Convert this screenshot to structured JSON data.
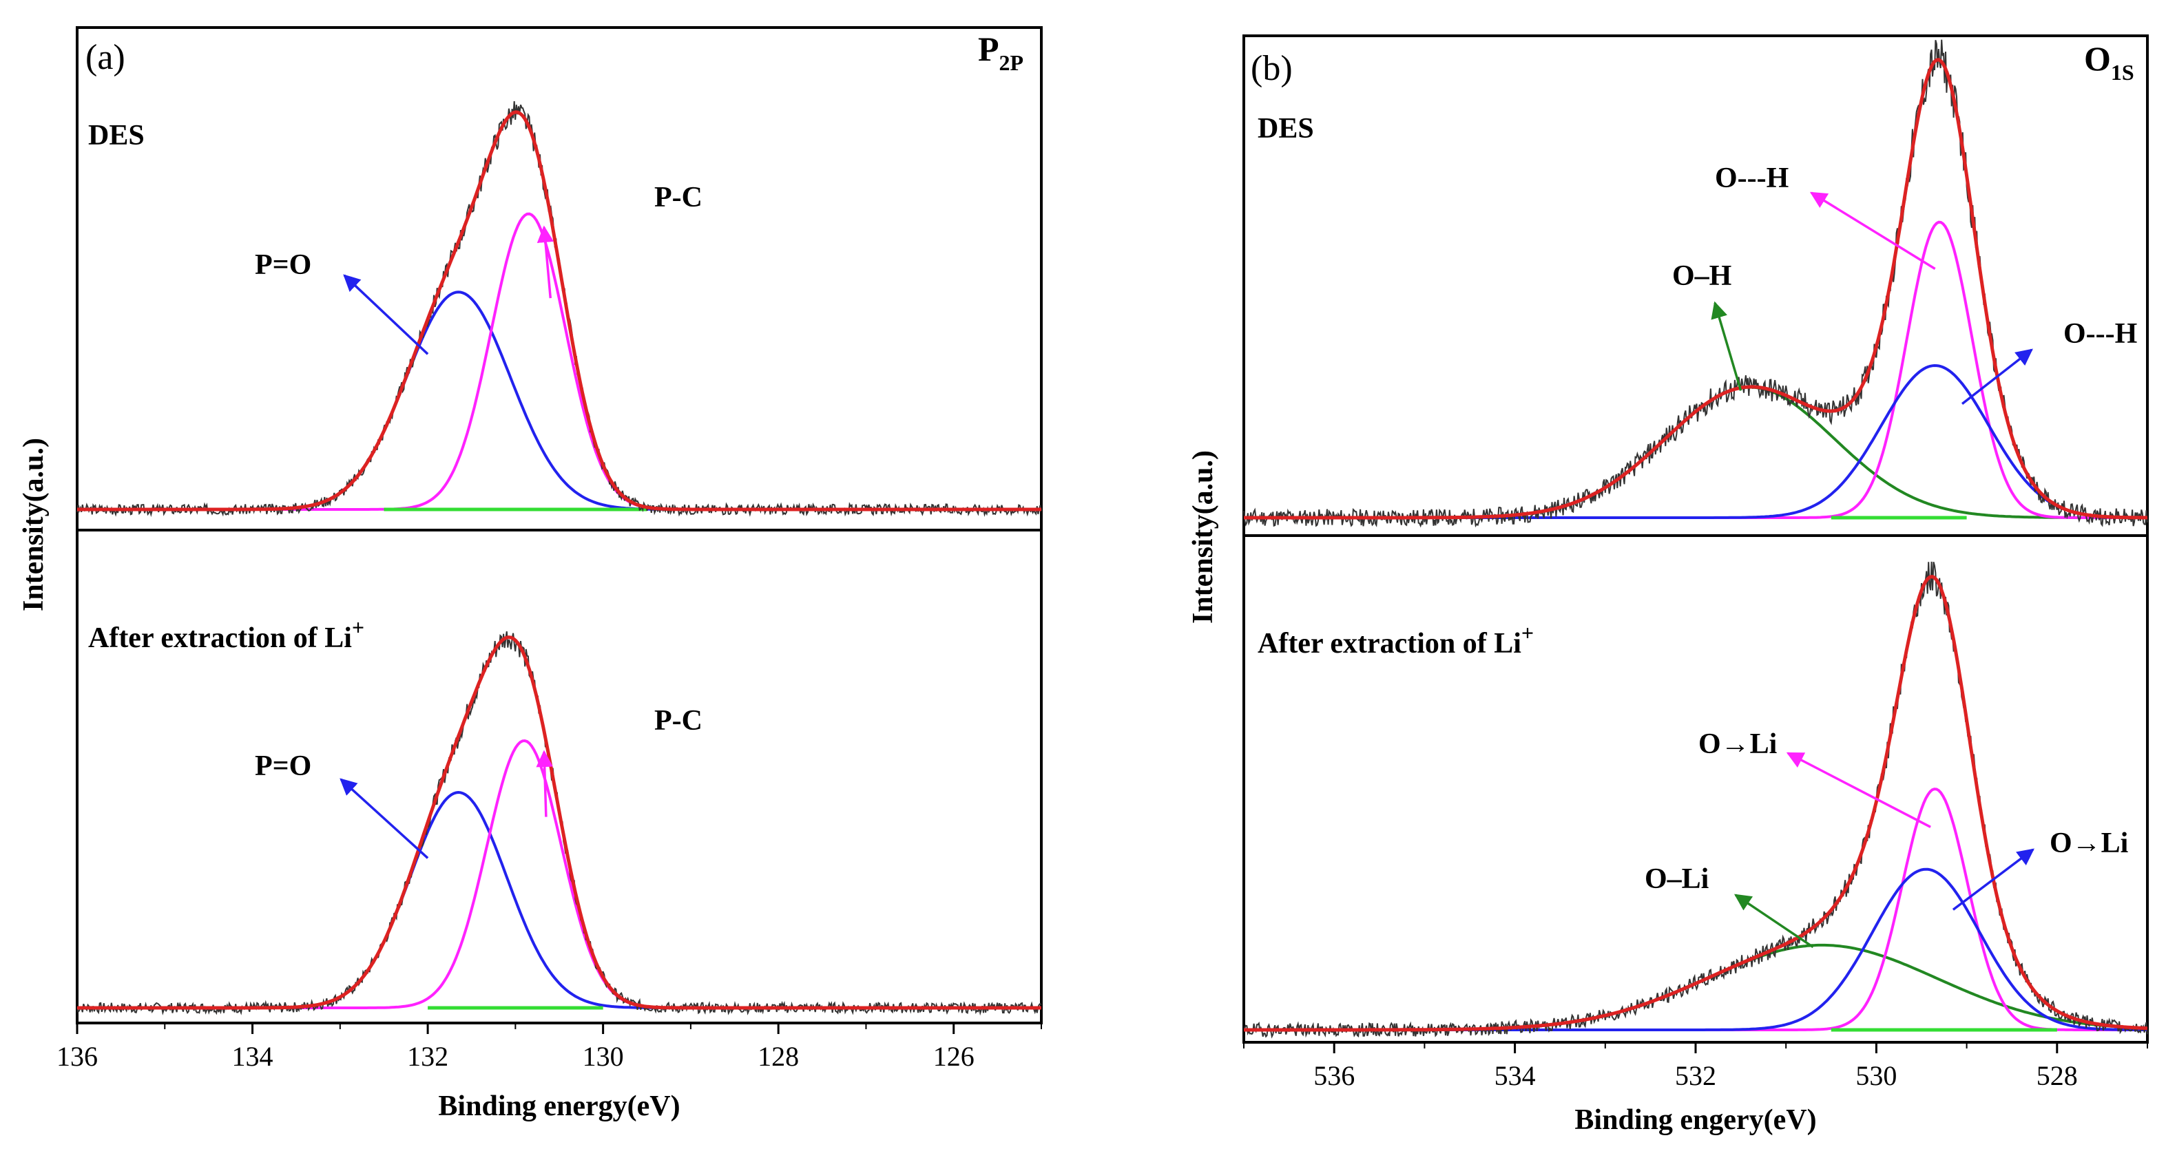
{
  "chart_data": [
    {
      "type": "line",
      "panel": "(a)",
      "corner_label": "P",
      "corner_sub": "2P",
      "xlabel": "Binding energy(eV)",
      "ylabel": "Intensity(a.u.)",
      "xlim": [
        136,
        125
      ],
      "ylim": [
        0,
        1.08
      ],
      "xticks": [
        136,
        134,
        132,
        130,
        128,
        126
      ],
      "x_reversed": true,
      "subplots": [
        {
          "sample": "DES",
          "sample_sup": "",
          "raw_seed": 3,
          "noise": 0.012,
          "peaks": [
            {
              "label": "P=O",
              "color": "#2222ee",
              "center": 131.65,
              "height": 0.5,
              "fwhm": 1.4
            },
            {
              "label": "P-C",
              "color": "#ff22ff",
              "center": 130.85,
              "height": 0.68,
              "fwhm": 1.0
            }
          ],
          "baseline": {
            "color": "#33dd33",
            "from": 132.5,
            "to": 129.5
          },
          "envelope_color": "#dd2222",
          "annotations": [
            {
              "text": "P=O",
              "peak": 0
            },
            {
              "text": "P-C",
              "peak": 1
            }
          ]
        },
        {
          "sample": "After extraction of Li",
          "sample_sup": "+",
          "raw_seed": 7,
          "noise": 0.012,
          "peaks": [
            {
              "label": "P=O",
              "color": "#2222ee",
              "center": 131.65,
              "height": 0.5,
              "fwhm": 1.3
            },
            {
              "label": "P-C",
              "color": "#ff22ff",
              "center": 130.9,
              "height": 0.62,
              "fwhm": 1.0
            }
          ],
          "baseline": {
            "color": "#33dd33",
            "from": 132.0,
            "to": 130.0
          },
          "envelope_color": "#dd2222",
          "annotations": [
            {
              "text": "P=O",
              "peak": 0
            },
            {
              "text": "P-C",
              "peak": 1
            }
          ]
        }
      ]
    },
    {
      "type": "line",
      "panel": "(b)",
      "corner_label": "O",
      "corner_sub": "1S",
      "xlabel": "Binding engery(eV)",
      "ylabel": "Intensity(a.u.)",
      "xlim": [
        537,
        527
      ],
      "ylim": [
        0,
        1.08
      ],
      "xticks": [
        536,
        534,
        532,
        530,
        528
      ],
      "x_reversed": true,
      "subplots": [
        {
          "sample": "DES",
          "sample_sup": "",
          "raw_seed": 11,
          "noise": 0.02,
          "peaks": [
            {
              "label": "O–H",
              "color": "#228822",
              "center": 531.4,
              "height": 0.3,
              "fwhm": 2.2
            },
            {
              "label": "O---H",
              "color": "#ff22ff",
              "center": 529.3,
              "height": 0.68,
              "fwhm": 0.85
            },
            {
              "label": "O---H",
              "color": "#2222ee",
              "center": 529.35,
              "height": 0.35,
              "fwhm": 1.4
            }
          ],
          "baseline": {
            "color": "#33dd33",
            "from": 530.5,
            "to": 529.0
          },
          "envelope_color": "#dd2222",
          "annotations": [
            {
              "text": "O–H",
              "peak": 0
            },
            {
              "text": "O---H",
              "peak": 1
            },
            {
              "text": "O---H",
              "peak": 2
            }
          ]
        },
        {
          "sample": "After extraction of Li",
          "sample_sup": "+",
          "raw_seed": 19,
          "noise": 0.015,
          "peaks": [
            {
              "label": "O–Li",
              "color": "#228822",
              "center": 530.6,
              "height": 0.19,
              "fwhm": 3.0
            },
            {
              "label": "O→Li",
              "color": "#ff22ff",
              "center": 529.35,
              "height": 0.54,
              "fwhm": 0.85
            },
            {
              "label": "O→Li",
              "color": "#2222ee",
              "center": 529.45,
              "height": 0.36,
              "fwhm": 1.4
            }
          ],
          "baseline": {
            "color": "#33dd33",
            "from": 530.5,
            "to": 528.0
          },
          "envelope_color": "#dd2222",
          "annotations": [
            {
              "text": "O–Li",
              "peak": 0
            },
            {
              "text": "O→Li",
              "peak": 1
            },
            {
              "text": "O→Li",
              "peak": 2
            }
          ]
        }
      ]
    }
  ]
}
